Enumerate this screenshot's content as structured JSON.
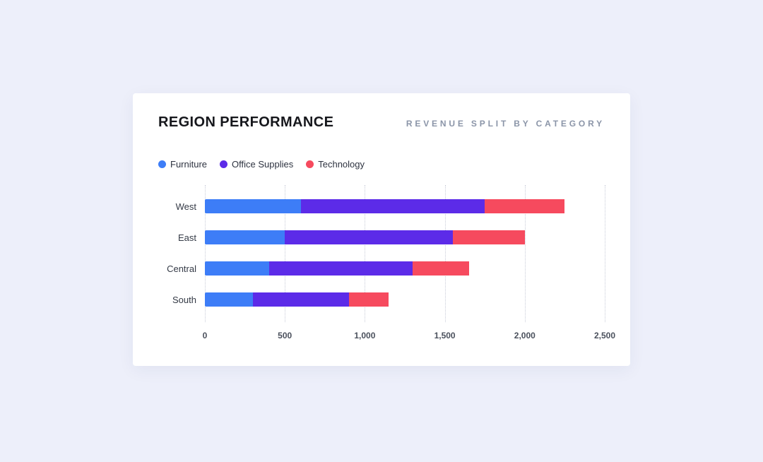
{
  "card": {
    "title": "REGION PERFORMANCE",
    "subtitle": "REVENUE SPLIT BY CATEGORY"
  },
  "legend": [
    {
      "label": "Furniture",
      "color": "#3d7df7"
    },
    {
      "label": "Office Supplies",
      "color": "#5c2be8"
    },
    {
      "label": "Technology",
      "color": "#f64a5e"
    }
  ],
  "chart_data": {
    "type": "bar",
    "orientation": "horizontal",
    "stacked": true,
    "title": "REGION PERFORMance",
    "categories": [
      "West",
      "East",
      "Central",
      "South"
    ],
    "series": [
      {
        "name": "Furniture",
        "color": "#3d7df7",
        "values": [
          600,
          500,
          400,
          300
        ]
      },
      {
        "name": "Office Supplies",
        "color": "#5c2be8",
        "values": [
          1150,
          1050,
          900,
          600
        ]
      },
      {
        "name": "Technology",
        "color": "#f64a5e",
        "values": [
          500,
          450,
          350,
          250
        ]
      }
    ],
    "totals": [
      2250,
      2000,
      1650,
      1150
    ],
    "xlim": [
      0,
      2500
    ],
    "xticks": [
      0,
      500,
      1000,
      1500,
      2000,
      2500
    ],
    "xtick_labels": [
      "0",
      "500",
      "1,000",
      "1,500",
      "2,000",
      "2,500"
    ],
    "grid": "dotted-vertical",
    "legend_position": "top-left"
  }
}
